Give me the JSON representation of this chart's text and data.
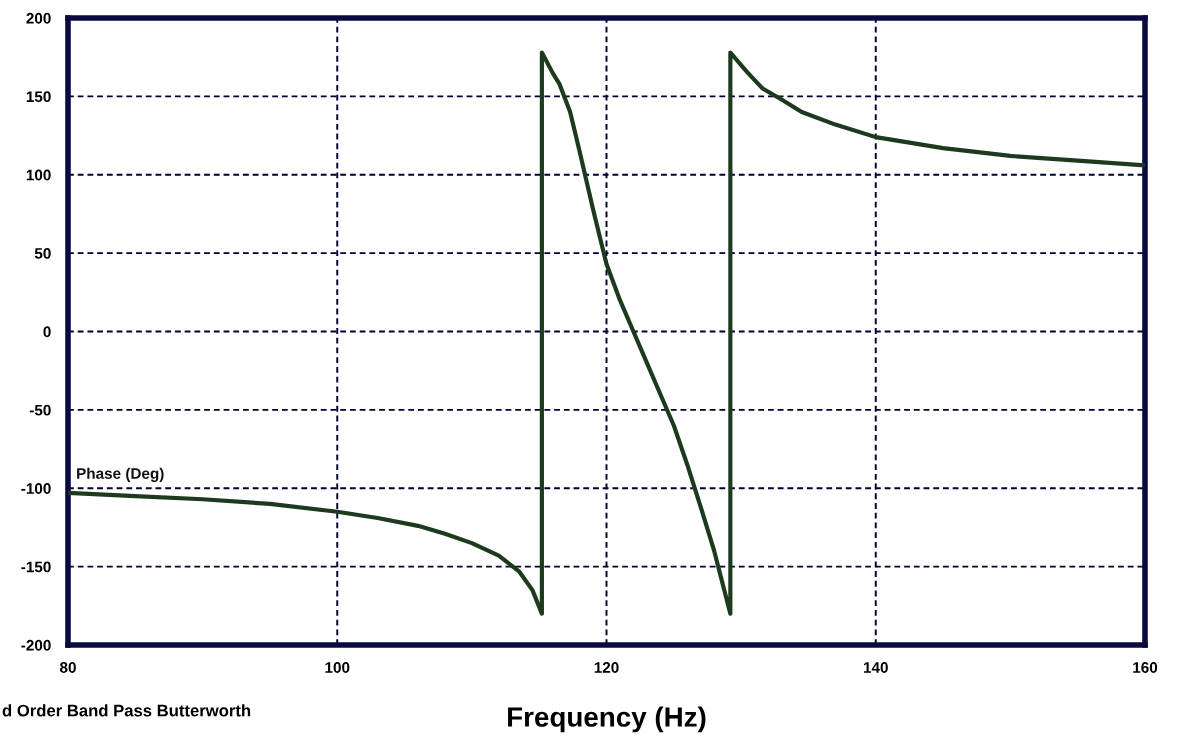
{
  "chart_data": {
    "type": "line",
    "xlabel": "Frequency (Hz)",
    "annotations": [
      "d Order Band Pass Butterworth"
    ],
    "xlim": [
      80,
      160
    ],
    "xticks": [
      80,
      100,
      120,
      140,
      160
    ],
    "ylim": [
      -200,
      200
    ],
    "yticks": [
      -200,
      -150,
      -100,
      -50,
      0,
      50,
      100,
      150,
      200
    ],
    "grid": true,
    "marker": "none",
    "line_style": "solid",
    "series": [
      {
        "name": "Phase (Deg)",
        "color": "#1e3a1e",
        "x": [
          80,
          85,
          90,
          95,
          100,
          103,
          106,
          108,
          110,
          112,
          113.5,
          114.5,
          115.2,
          115.2,
          116,
          116.5,
          117.3,
          118,
          119,
          120,
          121,
          122,
          123,
          124,
          125,
          126,
          127,
          128,
          129.2,
          129.2,
          130,
          130.5,
          131.6,
          133,
          134.5,
          137,
          140,
          145,
          150,
          155,
          160
        ],
        "values": [
          -103,
          -105,
          -107,
          -110,
          -115,
          -119,
          -124,
          -129,
          -135,
          -143,
          -153,
          -165,
          -180,
          178,
          165,
          158,
          140,
          115,
          78,
          43,
          20,
          0,
          -20,
          -40,
          -60,
          -85,
          -112,
          -140,
          -180,
          178,
          170,
          165,
          155,
          148,
          140,
          132,
          124,
          117,
          112,
          109,
          106
        ]
      }
    ]
  }
}
